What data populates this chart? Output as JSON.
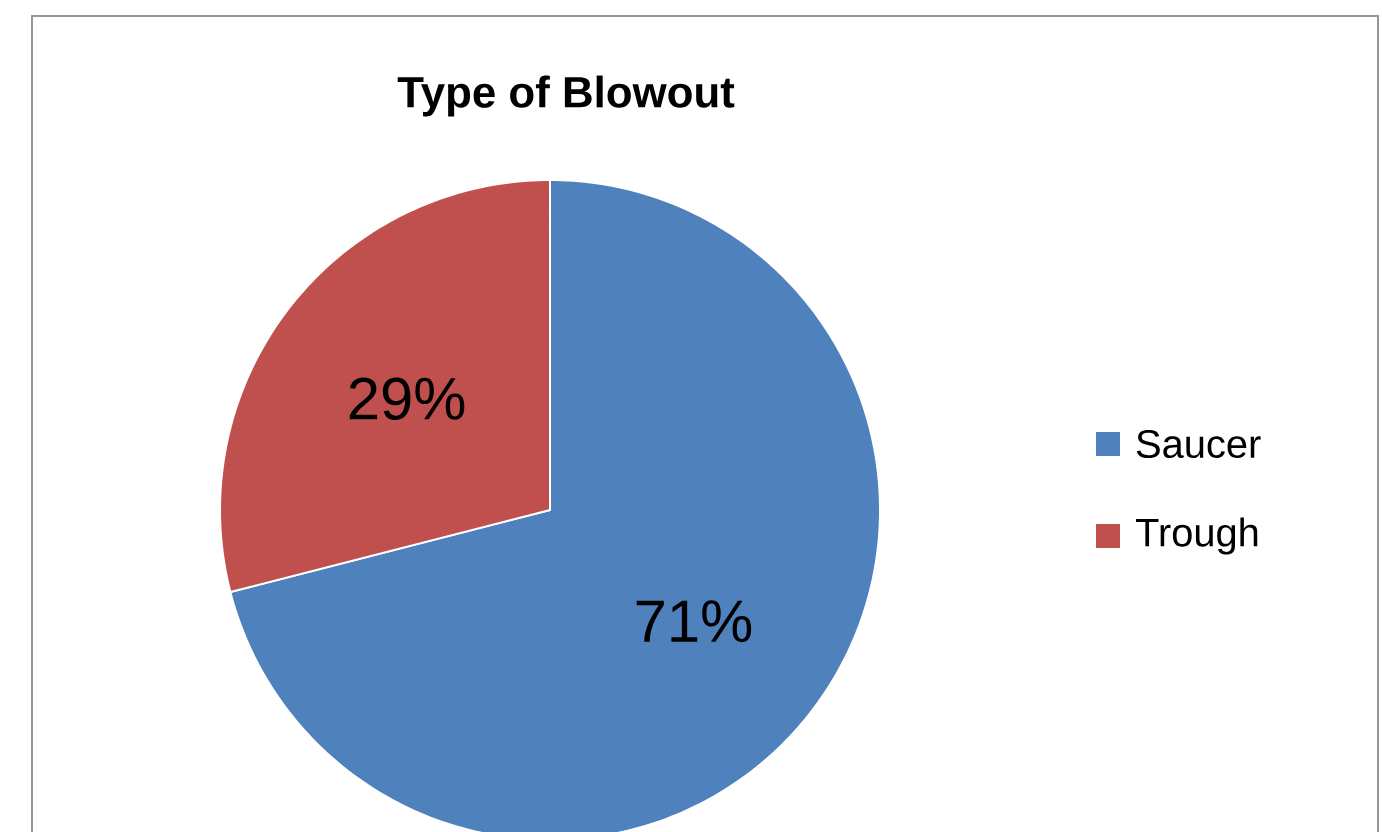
{
  "chart_data": {
    "type": "pie",
    "title": "Type of Blowout",
    "categories": [
      "Saucer",
      "Trough"
    ],
    "values": [
      71,
      29
    ],
    "colors": [
      "#4f81bd",
      "#c0504d"
    ],
    "value_labels": [
      "71%",
      "29%"
    ],
    "legend": "right"
  }
}
